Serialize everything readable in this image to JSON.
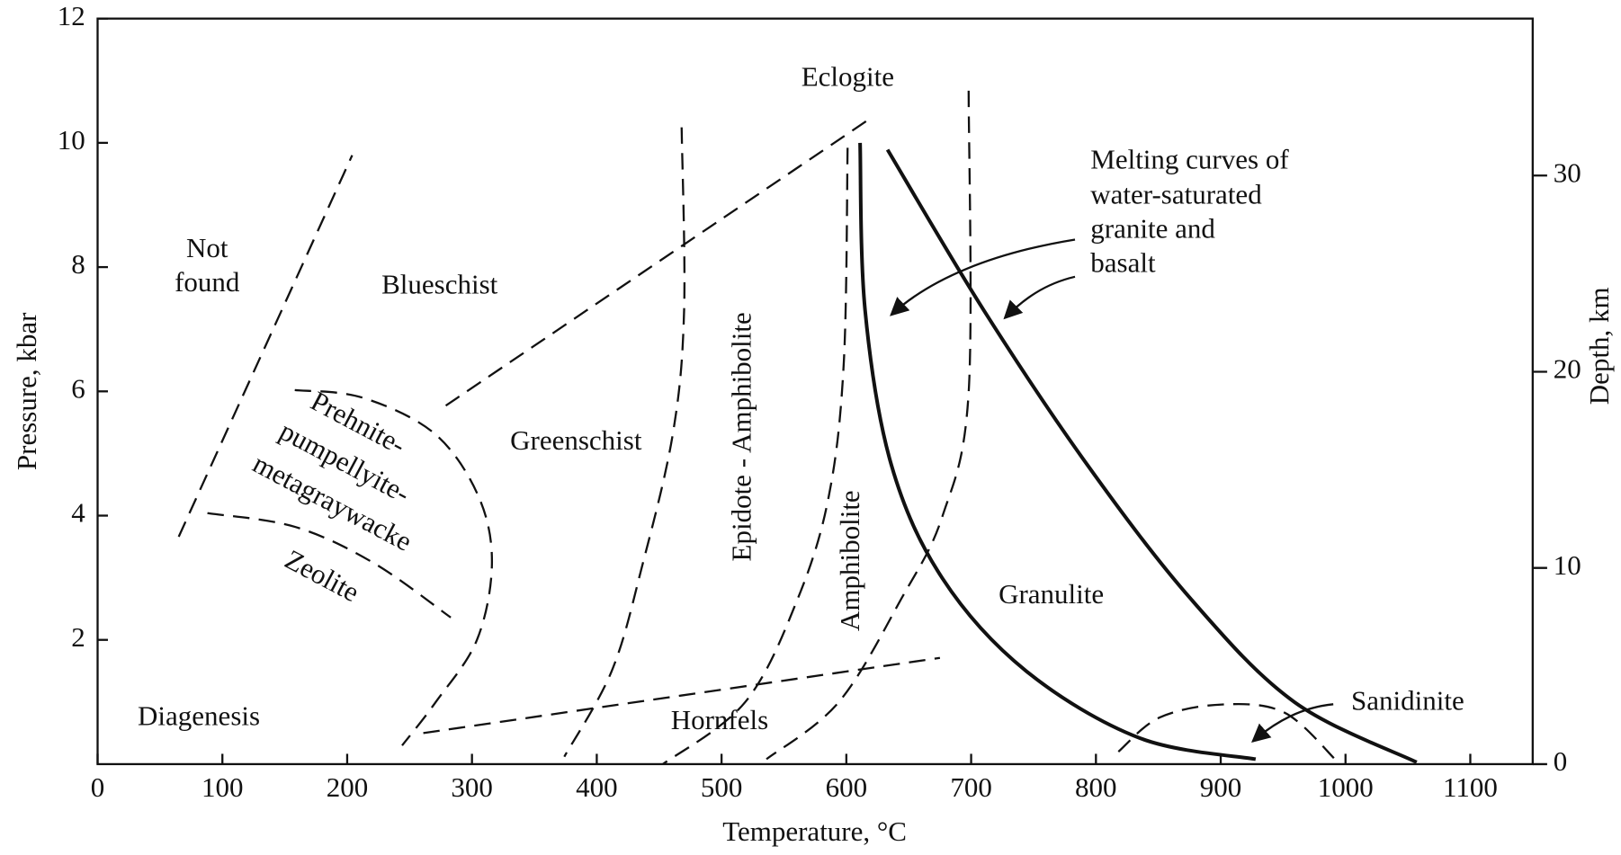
{
  "chart_data": {
    "type": "facies",
    "x_label": "Temperature, °C",
    "y_label": "Pressure, kbar",
    "y2_label": "Depth, km",
    "xlim": [
      0,
      1150
    ],
    "ylim": [
      0,
      12
    ],
    "y2lim": [
      0,
      38
    ],
    "xticks": [
      0,
      100,
      200,
      300,
      400,
      500,
      600,
      700,
      800,
      900,
      1000,
      1100
    ],
    "yticks": [
      2,
      4,
      6,
      8,
      10,
      12
    ],
    "y2ticks": [
      0,
      10,
      20,
      30
    ],
    "annotations": [
      "Eclogite",
      "Not",
      "found",
      "Blueschist",
      "Greenschist",
      "Diagenesis",
      "Hornfels",
      "Granulite",
      "Sanidinite",
      "Melting curves of",
      "water-saturated",
      "granite and",
      "basalt",
      "Prehnite-",
      "pumpellyite-",
      "metagraywacke",
      "Zeolite",
      "Epidote - Amphibolite",
      "Amphibolite"
    ],
    "series": [
      {
        "color": "#111",
        "dashed": true,
        "x": [
          65,
          204
        ],
        "values": [
          3.66,
          9.8
        ]
      },
      {
        "color": "#111",
        "dashed": true,
        "x": [
          88,
          158,
          221,
          283
        ],
        "values": [
          4.04,
          3.82,
          3.24,
          2.36
        ]
      },
      {
        "color": "#111",
        "dashed": true,
        "x": [
          158,
          212,
          270,
          305,
          316,
          304,
          271,
          244
        ],
        "values": [
          6.02,
          5.9,
          5.32,
          4.32,
          3.24,
          2.0,
          1.0,
          0.3
        ]
      },
      {
        "color": "#111",
        "dashed": true,
        "x": [
          279,
          619
        ],
        "values": [
          5.77,
          10.39
        ]
      },
      {
        "color": "#111",
        "dashed": true,
        "x": [
          468,
          470,
          461,
          436,
          412,
          374
        ],
        "values": [
          10.25,
          7.31,
          5.32,
          3.16,
          1.5,
          0.12
        ]
      },
      {
        "color": "#111",
        "dashed": true,
        "x": [
          601,
          598,
          586,
          561,
          519,
          453
        ],
        "values": [
          9.92,
          6.48,
          4.32,
          2.66,
          1.0,
          0
        ]
      },
      {
        "color": "#111",
        "dashed": true,
        "x": [
          698,
          698,
          677,
          644,
          594,
          536
        ],
        "values": [
          10.84,
          5.98,
          3.99,
          2.66,
          1.0,
          0.08
        ]
      },
      {
        "color": "#111",
        "dashed": true,
        "x": [
          261,
          675
        ],
        "values": [
          0.5,
          1.71
        ]
      },
      {
        "color": "#111",
        "dashed": true,
        "x": [
          818,
          851,
          901,
          951,
          993
        ],
        "values": [
          0.2,
          0.75,
          0.96,
          0.83,
          0.05
        ]
      },
      {
        "color": "#111",
        "dashed": false,
        "x": [
          611,
          615,
          636,
          677,
          744,
          835,
          928
        ],
        "values": [
          10.0,
          7.31,
          4.82,
          2.99,
          1.5,
          0.42,
          0.08
        ]
      },
      {
        "color": "#111",
        "dashed": false,
        "x": [
          633,
          710,
          793,
          876,
          959,
          1057
        ],
        "values": [
          9.89,
          7.31,
          4.82,
          2.66,
          1.0,
          0.03
        ]
      }
    ]
  }
}
